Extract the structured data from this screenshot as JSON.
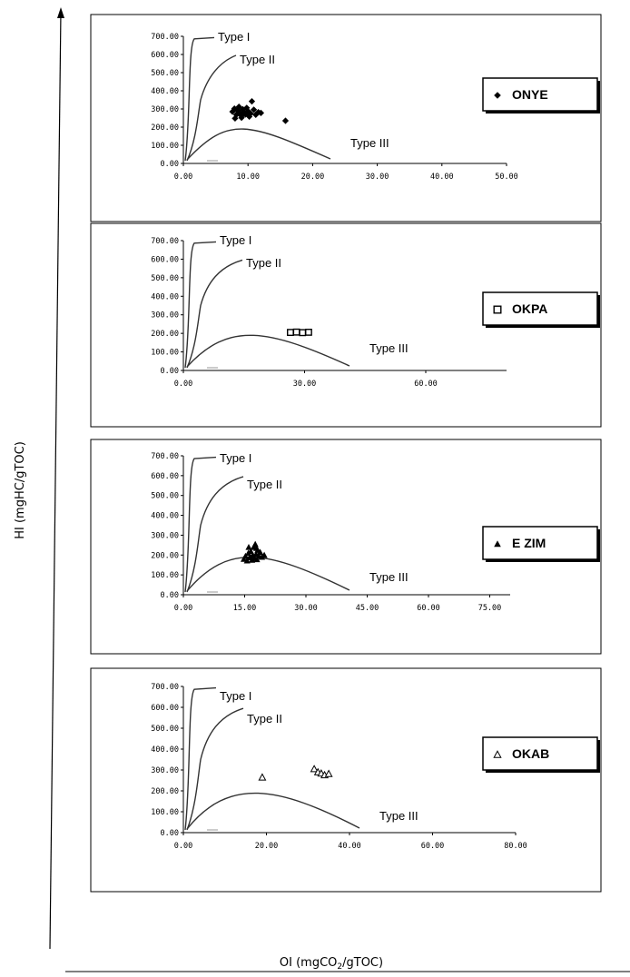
{
  "chart_data": {
    "type": "scatter",
    "ylabel": "HI (mgHC/gTOC)",
    "xlabel_main": "OI (mgCO",
    "xlabel_sub": "2",
    "xlabel_tail": "/gTOC)",
    "panels": [
      {
        "legend": "ONYE",
        "marker": "diamond-filled",
        "xticks": [
          "0.00",
          "10.00",
          "20.00",
          "30.00",
          "40.00",
          "50.00"
        ],
        "xlim": [
          0,
          50
        ],
        "yticks": [
          "0.00",
          "100.00",
          "200.00",
          "300.00",
          "400.00",
          "500.00",
          "600.00",
          "700.00"
        ],
        "ylim": [
          0,
          700
        ],
        "curve_labels": {
          "type1": "Type I",
          "type2": "Type II",
          "type3": "Type III"
        },
        "points": [
          [
            7.6,
            285
          ],
          [
            7.9,
            302
          ],
          [
            8.2,
            268
          ],
          [
            8.4,
            292
          ],
          [
            8.6,
            312
          ],
          [
            8.8,
            277
          ],
          [
            9.0,
            262
          ],
          [
            9.2,
            298
          ],
          [
            9.4,
            283
          ],
          [
            9.6,
            270
          ],
          [
            9.8,
            306
          ],
          [
            10.0,
            288
          ],
          [
            10.2,
            258
          ],
          [
            10.4,
            275
          ],
          [
            10.6,
            342
          ],
          [
            10.9,
            296
          ],
          [
            11.2,
            268
          ],
          [
            11.6,
            282
          ],
          [
            12.0,
            278
          ],
          [
            8.0,
            248
          ],
          [
            9.0,
            252
          ],
          [
            15.8,
            235
          ]
        ]
      },
      {
        "legend": "OKPA",
        "marker": "square-open",
        "xticks": [
          "0.00",
          "30.00",
          "60.00"
        ],
        "xlim": [
          0,
          80
        ],
        "yticks": [
          "0.00",
          "100.00",
          "200.00",
          "300.00",
          "400.00",
          "500.00",
          "600.00",
          "700.00"
        ],
        "ylim": [
          0,
          700
        ],
        "curve_labels": {
          "type1": "Type I",
          "type2": "Type II",
          "type3": "Type III"
        },
        "points": [
          [
            26.5,
            205
          ],
          [
            28.0,
            207
          ],
          [
            29.5,
            204
          ],
          [
            31.0,
            206
          ]
        ]
      },
      {
        "legend": "E ZIM",
        "marker": "triangle-filled",
        "xticks": [
          "0.00",
          "15.00",
          "30.00",
          "45.00",
          "60.00",
          "75.00"
        ],
        "xlim": [
          0,
          80
        ],
        "yticks": [
          "0.00",
          "100.00",
          "200.00",
          "300.00",
          "400.00",
          "500.00",
          "600.00",
          "700.00"
        ],
        "ylim": [
          0,
          700
        ],
        "curve_labels": {
          "type1": "Type I",
          "type2": "Type II",
          "type3": "Type III"
        },
        "points": [
          [
            14.8,
            180
          ],
          [
            15.2,
            195
          ],
          [
            15.6,
            172
          ],
          [
            15.9,
            210
          ],
          [
            16.2,
            188
          ],
          [
            16.5,
            220
          ],
          [
            16.8,
            175
          ],
          [
            17.0,
            200
          ],
          [
            17.2,
            240
          ],
          [
            17.4,
            185
          ],
          [
            17.6,
            255
          ],
          [
            17.8,
            205
          ],
          [
            18.0,
            178
          ],
          [
            18.2,
            225
          ],
          [
            18.5,
            195
          ],
          [
            18.8,
            215
          ],
          [
            19.2,
            190
          ],
          [
            19.8,
            200
          ],
          [
            16.0,
            240
          ],
          [
            17.9,
            235
          ]
        ]
      },
      {
        "legend": "OKAB",
        "marker": "triangle-open",
        "xticks": [
          "0.00",
          "20.00",
          "40.00",
          "60.00",
          "80.00"
        ],
        "xlim": [
          0,
          80
        ],
        "yticks": [
          "0.00",
          "100.00",
          "200.00",
          "300.00",
          "400.00",
          "500.00",
          "600.00",
          "700.00"
        ],
        "ylim": [
          0,
          700
        ],
        "curve_labels": {
          "type1": "Type I",
          "type2": "Type II",
          "type3": "Type III"
        },
        "points": [
          [
            19.0,
            265
          ],
          [
            31.5,
            305
          ],
          [
            32.4,
            290
          ],
          [
            33.2,
            284
          ],
          [
            34.0,
            276
          ],
          [
            35.0,
            282
          ]
        ]
      }
    ]
  }
}
